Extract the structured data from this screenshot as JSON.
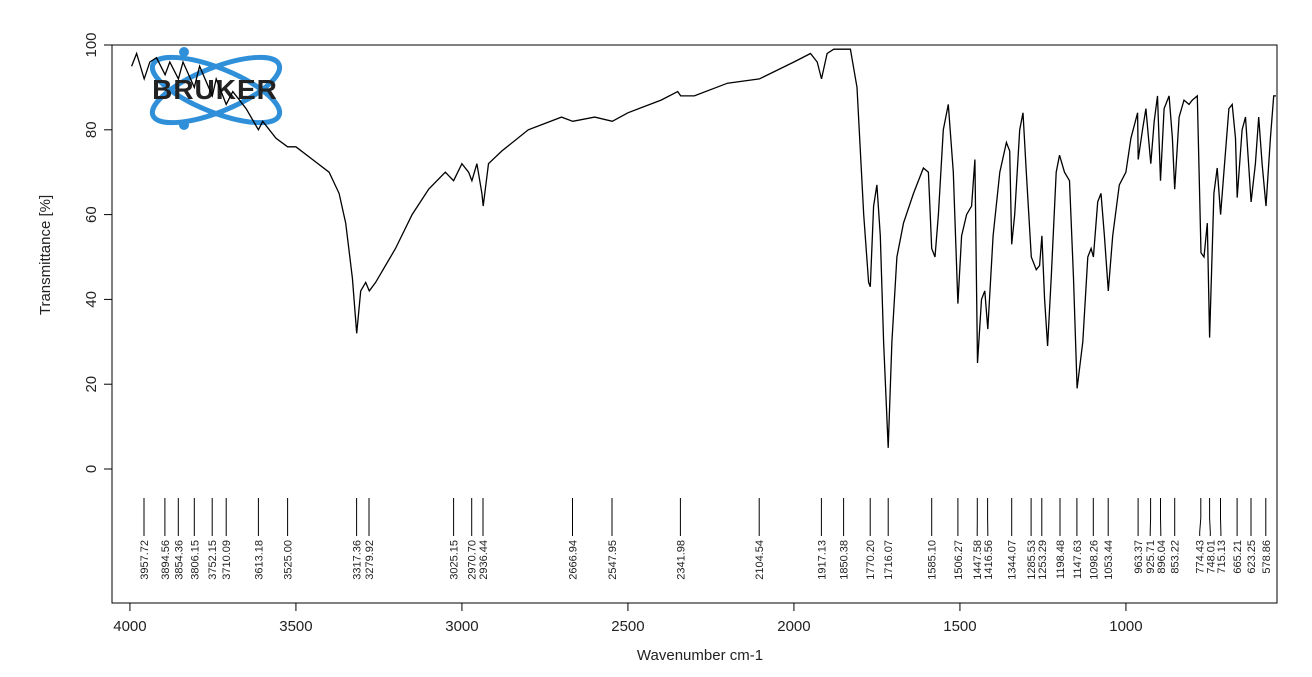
{
  "chart_data": {
    "type": "line",
    "logo": "BRUKER",
    "xlabel": "Wavenumber cm-1",
    "ylabel": "Transmittance [%]",
    "xlim": [
      4054,
      545
    ],
    "ylim": [
      -31.6,
      100
    ],
    "xticks": [
      4000,
      3500,
      3000,
      2500,
      2000,
      1500,
      1000
    ],
    "yticks": [
      0,
      20,
      40,
      60,
      80,
      100
    ],
    "color": "#000000",
    "x": [
      3995,
      3980,
      3957,
      3940,
      3920,
      3894,
      3880,
      3854,
      3840,
      3806,
      3790,
      3752,
      3740,
      3710,
      3690,
      3650,
      3613,
      3600,
      3560,
      3525,
      3500,
      3450,
      3400,
      3370,
      3350,
      3330,
      3317,
      3305,
      3290,
      3279,
      3260,
      3200,
      3150,
      3100,
      3050,
      3025,
      3000,
      2980,
      2970,
      2955,
      2940,
      2936,
      2920,
      2880,
      2800,
      2700,
      2666,
      2600,
      2547,
      2500,
      2400,
      2350,
      2341,
      2300,
      2200,
      2104,
      2000,
      1950,
      1930,
      1917,
      1900,
      1880,
      1850,
      1830,
      1810,
      1790,
      1775,
      1770,
      1760,
      1750,
      1740,
      1730,
      1716,
      1705,
      1690,
      1670,
      1640,
      1610,
      1595,
      1585,
      1575,
      1565,
      1550,
      1535,
      1520,
      1506,
      1495,
      1480,
      1465,
      1455,
      1447,
      1435,
      1425,
      1416,
      1400,
      1380,
      1360,
      1350,
      1344,
      1335,
      1320,
      1310,
      1300,
      1285,
      1270,
      1260,
      1253,
      1245,
      1236,
      1225,
      1210,
      1200,
      1185,
      1170,
      1158,
      1147,
      1130,
      1115,
      1105,
      1098,
      1085,
      1075,
      1065,
      1053,
      1040,
      1020,
      1000,
      985,
      965,
      963,
      950,
      940,
      925,
      915,
      905,
      896,
      885,
      870,
      860,
      853,
      840,
      825,
      810,
      800,
      785,
      774,
      765,
      755,
      748,
      735,
      725,
      715,
      705,
      690,
      680,
      670,
      665,
      650,
      640,
      623,
      610,
      600,
      590,
      578,
      565,
      555,
      548
    ],
    "values": [
      95,
      98,
      92,
      96,
      97,
      93,
      96,
      92,
      96,
      90,
      95,
      88,
      92,
      86,
      89,
      85,
      80,
      82,
      78,
      76,
      76,
      73,
      70,
      65,
      58,
      45,
      32,
      42,
      44,
      42,
      44,
      52,
      60,
      66,
      70,
      68,
      72,
      70,
      68,
      72,
      65,
      62,
      72,
      75,
      80,
      83,
      82,
      83,
      82,
      84,
      87,
      89,
      88,
      88,
      91,
      92,
      96,
      98,
      96,
      92,
      98,
      99,
      99,
      99,
      90,
      60,
      44,
      43,
      62,
      67,
      55,
      30,
      5,
      30,
      50,
      58,
      65,
      71,
      70,
      52,
      50,
      60,
      80,
      86,
      70,
      39,
      55,
      60,
      62,
      73,
      25,
      40,
      42,
      33,
      55,
      70,
      77,
      75,
      53,
      60,
      80,
      84,
      70,
      50,
      47,
      48,
      55,
      40,
      29,
      45,
      70,
      74,
      70,
      68,
      45,
      19,
      30,
      50,
      52,
      50,
      63,
      65,
      55,
      42,
      55,
      67,
      70,
      78,
      84,
      73,
      80,
      85,
      72,
      82,
      88,
      68,
      85,
      88,
      78,
      66,
      83,
      87,
      86,
      87,
      88,
      51,
      50,
      58,
      31,
      65,
      71,
      60,
      70,
      85,
      86,
      78,
      64,
      80,
      83,
      63,
      72,
      83,
      72,
      62,
      78,
      88,
      88
    ],
    "peaks": [
      3957.72,
      3894.56,
      3854.36,
      3806.15,
      3752.15,
      3710.09,
      3613.18,
      {
        "value": 3525,
        "label": "3525.00"
      },
      3317.36,
      3279.92,
      3025.15,
      {
        "value": 2970.7,
        "label": "2970.70"
      },
      2936.44,
      2666.94,
      2547.95,
      2341.98,
      2104.54,
      1917.13,
      1850.38,
      {
        "value": 1770.2,
        "label": "1770.20"
      },
      1716.07,
      {
        "value": 1585.1,
        "label": "1585.10"
      },
      1506.27,
      1447.58,
      1416.56,
      1344.07,
      1285.53,
      1253.29,
      1198.48,
      1147.63,
      1098.26,
      1053.44,
      963.37,
      925.71,
      896.04,
      853.22,
      774.43,
      748.01,
      715.13,
      665.21,
      623.25,
      578.86
    ]
  }
}
